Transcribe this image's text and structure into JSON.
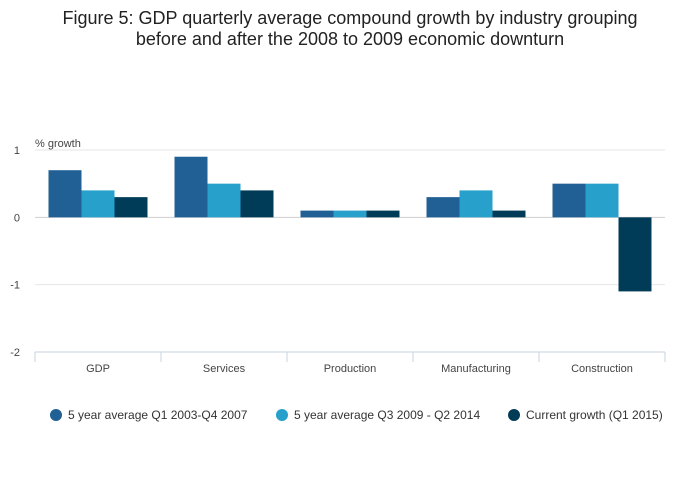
{
  "chart_data": {
    "type": "bar",
    "title": [
      "Figure 5: GDP quarterly average compound growth by industry grouping",
      "before and after the 2008 to 2009 economic downturn"
    ],
    "ylabel": "% growth",
    "xlabel": "",
    "ylim": [
      -2,
      1
    ],
    "yticks": [
      1,
      0,
      -1,
      -2
    ],
    "ytick_labels": [
      "1",
      "0",
      "-1",
      "-2"
    ],
    "grid": true,
    "legend_position": "bottom",
    "categories": [
      "GDP",
      "Services",
      "Production",
      "Manufacturing",
      "Construction"
    ],
    "series": [
      {
        "name": "5 year average Q1 2003-Q4 2007",
        "color": "#206095",
        "values": [
          0.7,
          0.9,
          0.1,
          0.3,
          0.5
        ]
      },
      {
        "name": "5 year average Q3 2009 - Q2 2014",
        "color": "#27a0cc",
        "values": [
          0.4,
          0.5,
          0.1,
          0.4,
          0.5
        ]
      },
      {
        "name": "Current growth (Q1 2015)",
        "color": "#003c57",
        "values": [
          0.3,
          0.4,
          0.1,
          0.1,
          -1.1
        ]
      }
    ]
  }
}
